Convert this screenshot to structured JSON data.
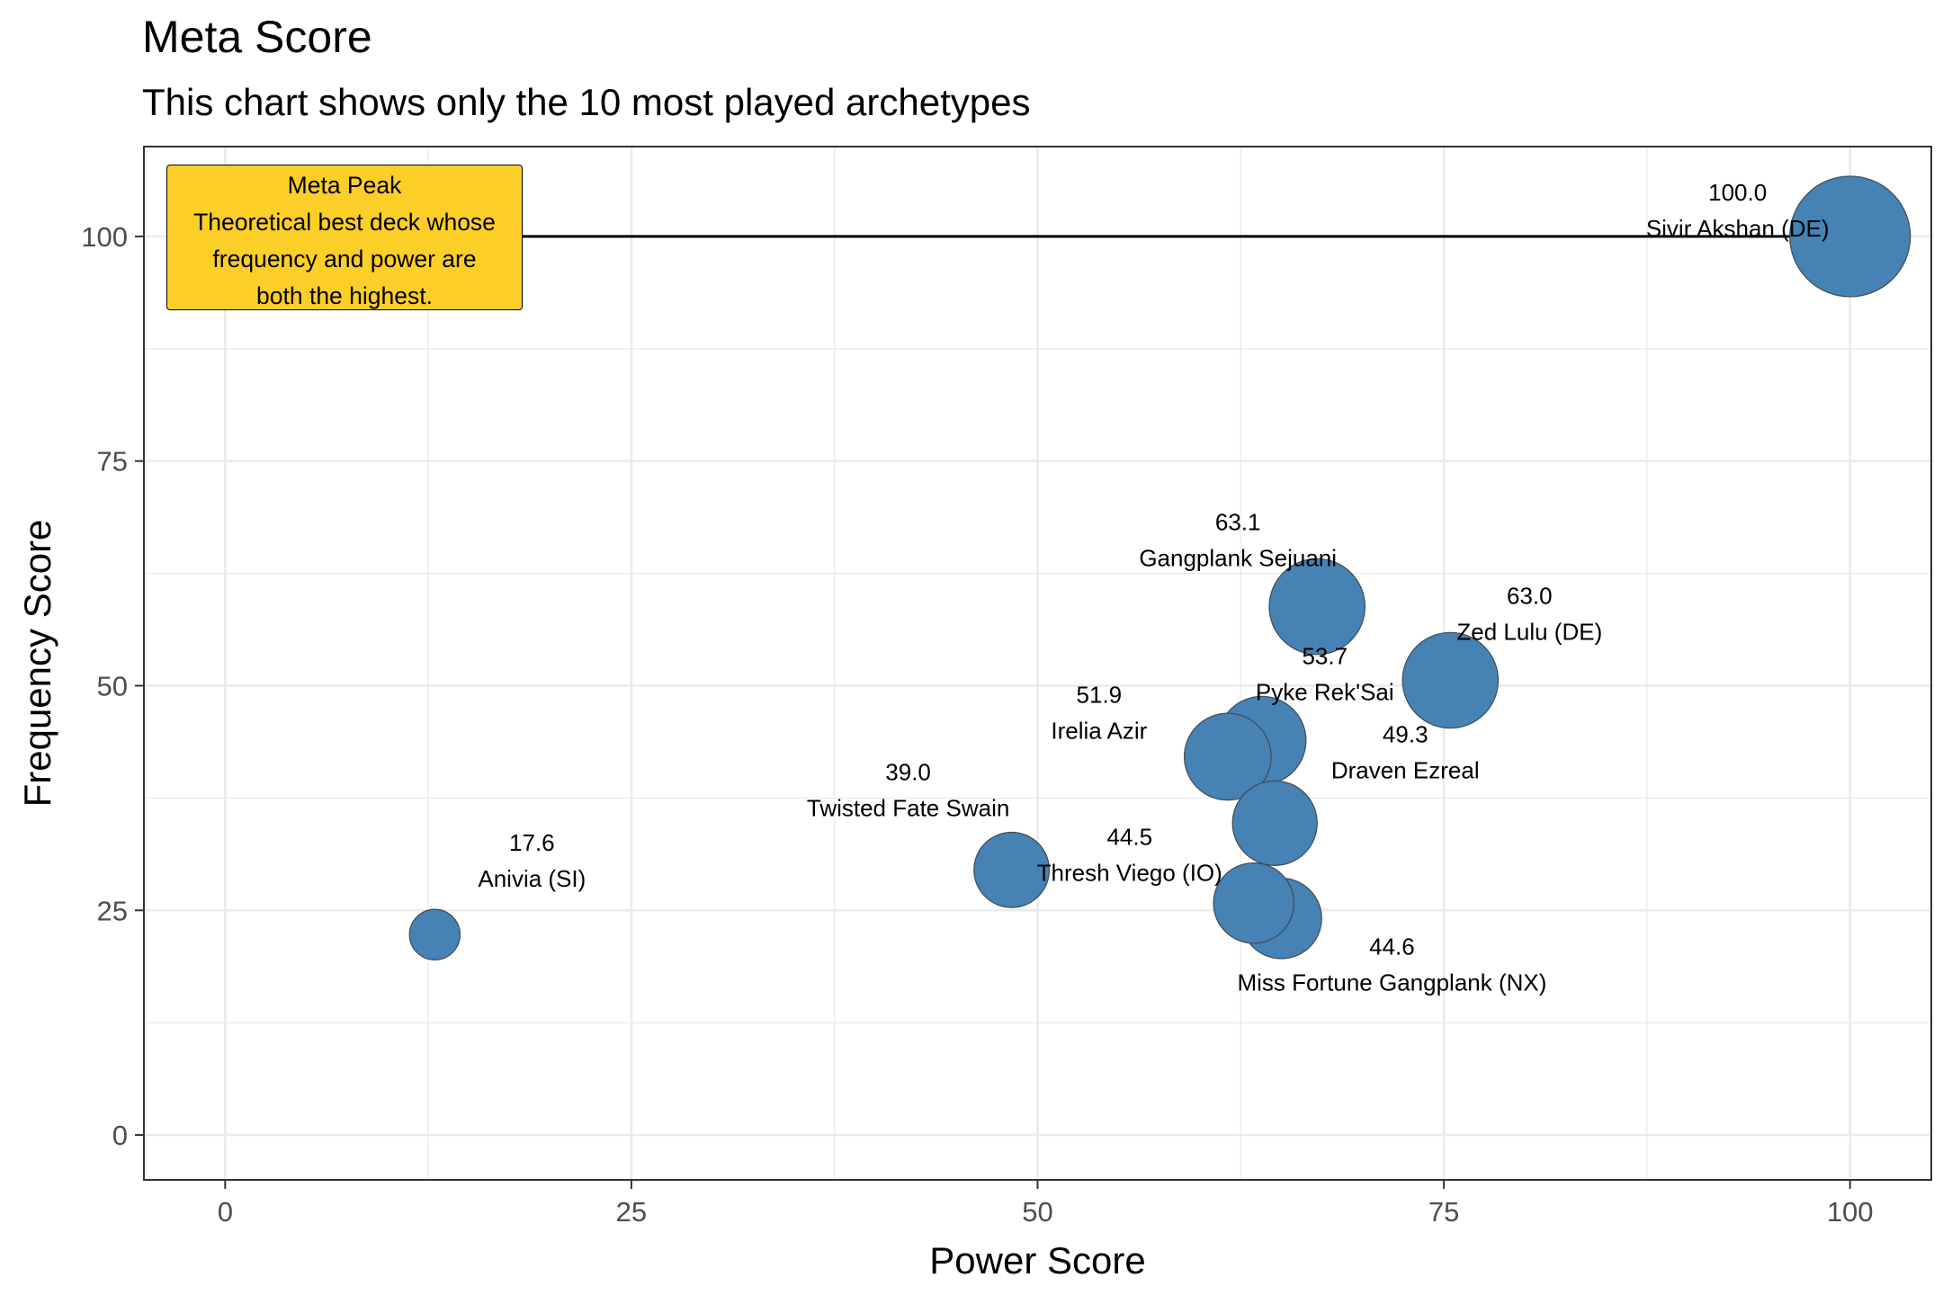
{
  "title": "Meta Score",
  "subtitle": "This chart shows only the 10 most played archetypes",
  "annotation": {
    "heading": "Meta Peak",
    "lines": [
      "Theoretical best deck whose",
      "frequency and power are",
      "both the highest."
    ]
  },
  "chart_data": {
    "type": "scatter",
    "title": "Meta Score",
    "subtitle": "This chart shows only the 10 most played archetypes",
    "xlabel": "Power Score",
    "ylabel": "Frequency Score",
    "xlim": [
      -5,
      105
    ],
    "ylim": [
      -5,
      110
    ],
    "x_ticks": [
      0,
      25,
      50,
      75,
      100
    ],
    "y_ticks": [
      0,
      25,
      50,
      75,
      100
    ],
    "grid": true,
    "point_color": "#4682b4",
    "annotation_color": "#fcce28",
    "points": [
      {
        "name": "Sivir Akshan (DE)",
        "meta_score": "100.0",
        "x": 100,
        "y": 100,
        "size": 100
      },
      {
        "name": "Gangplank Sejuani",
        "meta_score": "63.1",
        "x": 67.2,
        "y": 58.8,
        "size": 63.1
      },
      {
        "name": "Zed Lulu (DE)",
        "meta_score": "63.0",
        "x": 75.4,
        "y": 50.6,
        "size": 63.0
      },
      {
        "name": "Pyke Rek'Sai",
        "meta_score": "53.7",
        "x": 63.8,
        "y": 43.9,
        "size": 53.7
      },
      {
        "name": "Draven Ezreal",
        "meta_score": "49.3",
        "x": 64.6,
        "y": 34.7,
        "size": 49.3
      },
      {
        "name": "Irelia Azir",
        "meta_score": "51.9",
        "x": 61.7,
        "y": 42.1,
        "size": 51.9
      },
      {
        "name": "Twisted Fate Swain",
        "meta_score": "39.0",
        "x": 48.4,
        "y": 29.5,
        "size": 39.0
      },
      {
        "name": "Miss Fortune Gangplank (NX)",
        "meta_score": "44.6",
        "x": 65.0,
        "y": 24.1,
        "size": 44.6
      },
      {
        "name": "Thresh Viego (IO)",
        "meta_score": "44.5",
        "x": 63.3,
        "y": 25.8,
        "size": 44.5
      },
      {
        "name": "Anivia (SI)",
        "meta_score": "17.6",
        "x": 12.9,
        "y": 22.3,
        "size": 17.6
      }
    ]
  }
}
